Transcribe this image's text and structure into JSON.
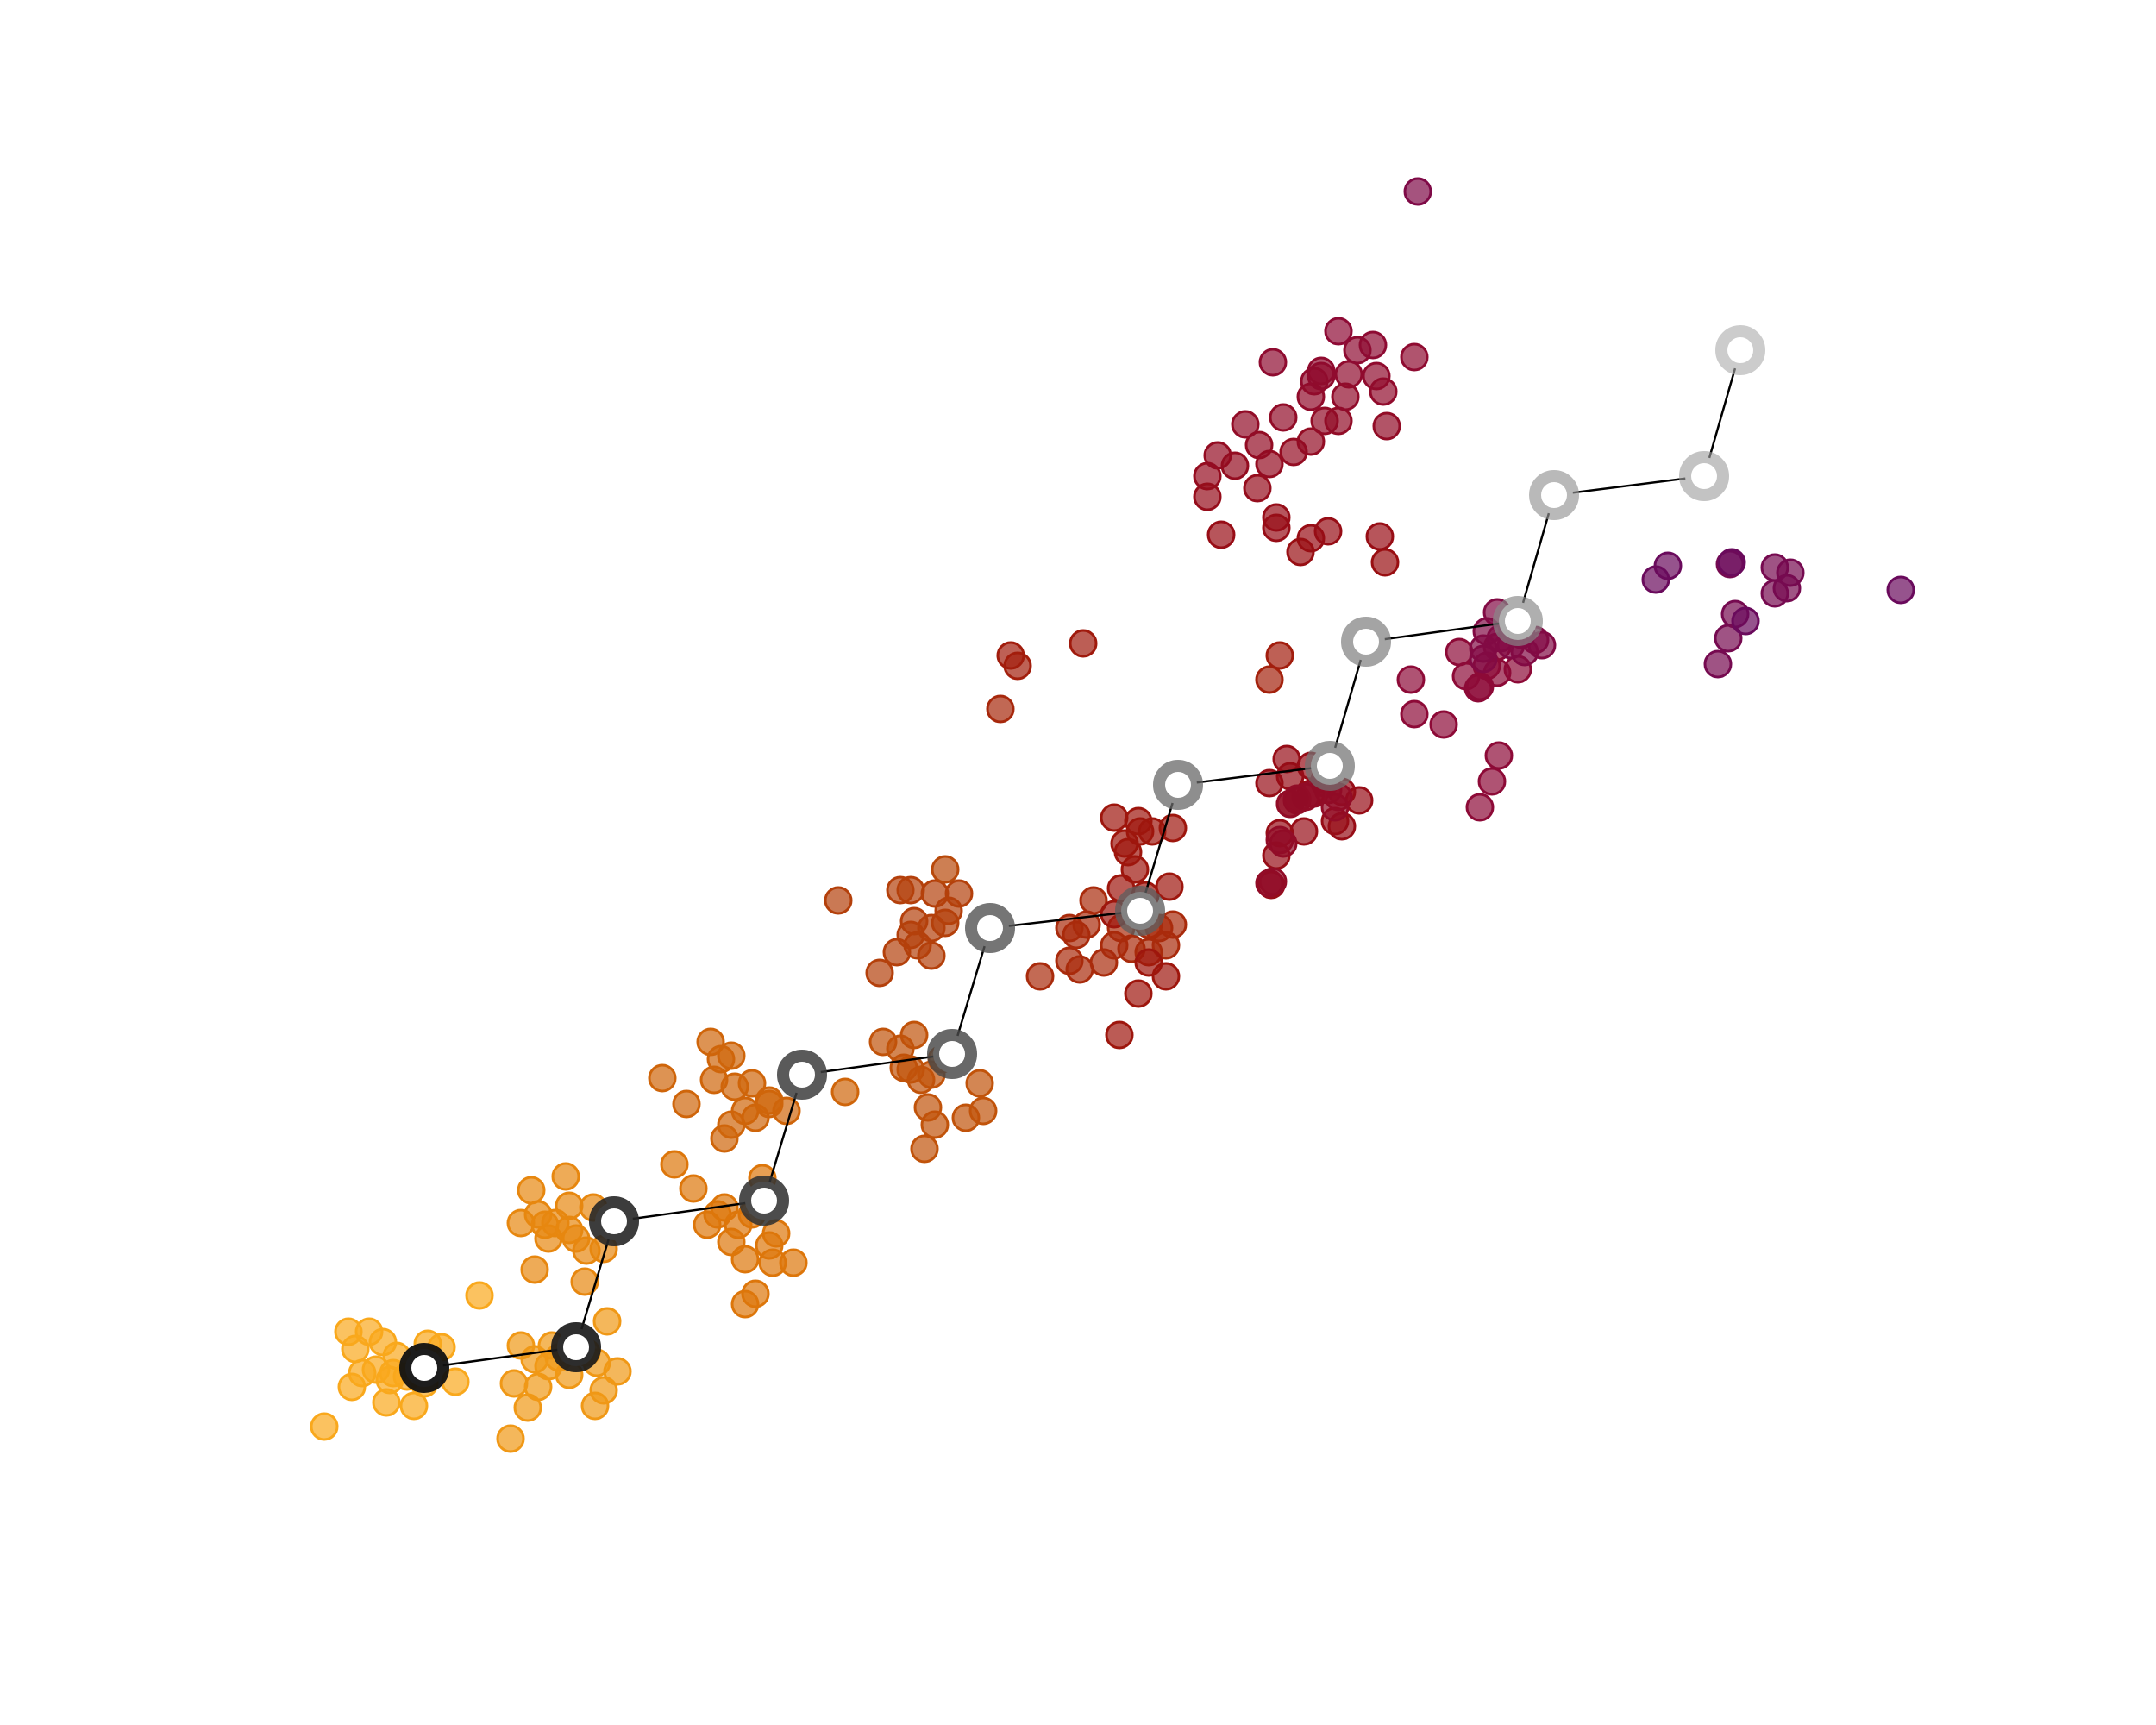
{
  "chart_data": {
    "type": "scatter",
    "title": "",
    "xlabel": "",
    "ylabel": "",
    "axes_visible": false,
    "grid": false,
    "legend": "none",
    "xlim": [
      0,
      1250
    ],
    "ylim": [
      1000,
      0
    ],
    "colors": {
      "gradient_start": "#F9A81C",
      "gradient_mid1": "#E07A0A",
      "gradient_mid2": "#B8480A",
      "gradient_mid3": "#9A0E0E",
      "gradient_mid4": "#8C0A3A",
      "gradient_end": "#6A0A5C",
      "path_line": "#000000",
      "path_node_dark": "#111111",
      "path_node_light": "#aaaaaa"
    },
    "path": [
      [
        246,
        207
      ],
      [
        334,
        219
      ],
      [
        356,
        292
      ],
      [
        443,
        304
      ],
      [
        465,
        377
      ],
      [
        552,
        389
      ],
      [
        574,
        462
      ],
      [
        661,
        472
      ],
      [
        683,
        545
      ],
      [
        771,
        556
      ],
      [
        792,
        628
      ],
      [
        880,
        640
      ],
      [
        901,
        713
      ],
      [
        988,
        724
      ],
      [
        1009,
        797
      ]
    ],
    "clusters": [
      {
        "center": [
          246,
          207
        ],
        "points": [
          [
            188,
            173
          ],
          [
            204,
            196
          ],
          [
            224,
            187
          ],
          [
            240,
            185
          ],
          [
            218,
            206
          ],
          [
            228,
            204
          ],
          [
            246,
            198
          ],
          [
            264,
            199
          ],
          [
            230,
            214
          ],
          [
            206,
            218
          ],
          [
            214,
            228
          ],
          [
            202,
            228
          ],
          [
            222,
            222
          ],
          [
            248,
            221
          ],
          [
            256,
            219
          ],
          [
            236,
            202
          ],
          [
            278,
            249
          ],
          [
            226,
            200
          ],
          [
            210,
            204
          ]
        ]
      },
      {
        "center": [
          334,
          219
        ],
        "points": [
          [
            296,
            166
          ],
          [
            306,
            184
          ],
          [
            312,
            196
          ],
          [
            298,
            198
          ],
          [
            310,
            212
          ],
          [
            330,
            203
          ],
          [
            345,
            185
          ],
          [
            350,
            194
          ],
          [
            358,
            205
          ],
          [
            340,
            216
          ],
          [
            320,
            220
          ],
          [
            302,
            220
          ],
          [
            352,
            234
          ],
          [
            318,
            208
          ],
          [
            346,
            210
          ],
          [
            324,
            213
          ]
        ]
      },
      {
        "center": [
          356,
          292
        ],
        "points": [
          [
            310,
            264
          ],
          [
            318,
            282
          ],
          [
            330,
            287
          ],
          [
            340,
            275
          ],
          [
            322,
            291
          ],
          [
            302,
            291
          ],
          [
            312,
            296
          ],
          [
            308,
            310
          ],
          [
            330,
            301
          ],
          [
            350,
            276
          ],
          [
            344,
            300
          ],
          [
            328,
            318
          ],
          [
            339,
            257
          ],
          [
            316,
            290
          ],
          [
            334,
            282
          ]
        ]
      },
      {
        "center": [
          443,
          304
        ],
        "points": [
          [
            432,
            244
          ],
          [
            438,
            250
          ],
          [
            448,
            268
          ],
          [
            460,
            268
          ],
          [
            446,
            278
          ],
          [
            432,
            270
          ],
          [
            424,
            280
          ],
          [
            450,
            285
          ],
          [
            410,
            290
          ],
          [
            420,
            300
          ],
          [
            402,
            311
          ],
          [
            391,
            325
          ],
          [
            436,
            296
          ],
          [
            442,
            317
          ],
          [
            416,
            296
          ],
          [
            428,
            290
          ]
        ]
      },
      {
        "center": [
          465,
          377
        ],
        "points": [
          [
            420,
            340
          ],
          [
            424,
            348
          ],
          [
            432,
            356
          ],
          [
            438,
            352
          ],
          [
            446,
            360
          ],
          [
            456,
            356
          ],
          [
            426,
            370
          ],
          [
            414,
            374
          ],
          [
            398,
            360
          ],
          [
            384,
            375
          ],
          [
            418,
            386
          ],
          [
            436,
            372
          ],
          [
            424,
            388
          ],
          [
            412,
            396
          ],
          [
            490,
            367
          ],
          [
            446,
            362
          ]
        ]
      },
      {
        "center": [
          552,
          389
        ],
        "points": [
          [
            536,
            334
          ],
          [
            542,
            348
          ],
          [
            538,
            358
          ],
          [
            560,
            352
          ],
          [
            570,
            356
          ],
          [
            568,
            372
          ],
          [
            534,
            374
          ],
          [
            524,
            381
          ],
          [
            512,
            396
          ],
          [
            530,
            400
          ],
          [
            546,
            386
          ],
          [
            522,
            392
          ],
          [
            528,
            380
          ],
          [
            540,
            377
          ]
        ]
      },
      {
        "center": [
          574,
          462
        ],
        "points": [
          [
            510,
            436
          ],
          [
            520,
            448
          ],
          [
            528,
            458
          ],
          [
            532,
            452
          ],
          [
            540,
            446
          ],
          [
            550,
            472
          ],
          [
            530,
            466
          ],
          [
            528,
            484
          ],
          [
            522,
            484
          ],
          [
            542,
            482
          ],
          [
            556,
            482
          ],
          [
            486,
            478
          ],
          [
            540,
            462
          ],
          [
            548,
            465
          ]
        ]
      },
      {
        "center": [
          661,
          472
        ],
        "points": [
          [
            603,
            434
          ],
          [
            620,
            443
          ],
          [
            626,
            438
          ],
          [
            640,
            442
          ],
          [
            646,
            452
          ],
          [
            656,
            450
          ],
          [
            666,
            448
          ],
          [
            676,
            452
          ],
          [
            624,
            458
          ],
          [
            666,
            464
          ],
          [
            650,
            462
          ],
          [
            630,
            464
          ],
          [
            634,
            478
          ],
          [
            620,
            462
          ],
          [
            680,
            464
          ],
          [
            672,
            462
          ]
        ]
      },
      {
        "center": [
          683,
          545
        ],
        "points": [
          [
            649,
            400
          ],
          [
            660,
            424
          ],
          [
            676,
            434
          ],
          [
            666,
            442
          ],
          [
            646,
            470
          ],
          [
            650,
            485
          ],
          [
            664,
            481
          ],
          [
            678,
            486
          ],
          [
            658,
            496
          ],
          [
            652,
            511
          ],
          [
            661,
            518
          ],
          [
            646,
            526
          ],
          [
            660,
            524
          ],
          [
            668,
            518
          ],
          [
            654,
            506
          ],
          [
            680,
            520
          ]
        ]
      },
      {
        "center": [
          771,
          556
        ],
        "points": [
          [
            737,
            487
          ],
          [
            742,
            517
          ],
          [
            740,
            504
          ],
          [
            748,
            534
          ],
          [
            756,
            518
          ],
          [
            774,
            524
          ],
          [
            778,
            521
          ],
          [
            788,
            536
          ],
          [
            778,
            541
          ],
          [
            760,
            540
          ],
          [
            760,
            556
          ],
          [
            770,
            556
          ],
          [
            748,
            550
          ],
          [
            736,
            546
          ],
          [
            768,
            548
          ],
          [
            746,
            560
          ]
        ]
      },
      {
        "center": [
          792,
          628
        ],
        "points": [
          [
            736,
            488
          ],
          [
            738,
            489
          ],
          [
            744,
            511
          ],
          [
            752,
            536
          ],
          [
            748,
            534
          ],
          [
            770,
            542
          ],
          [
            768,
            546
          ],
          [
            757,
            538
          ],
          [
            762,
            540
          ],
          [
            752,
            537
          ],
          [
            774,
            532
          ],
          [
            776,
            538
          ],
          [
            742,
            513
          ]
        ]
      },
      {
        "center": [
          880,
          640
        ],
        "points": [
          [
            858,
            532
          ],
          [
            865,
            547
          ],
          [
            869,
            562
          ],
          [
            837,
            580
          ],
          [
            818,
            606
          ],
          [
            820,
            586
          ],
          [
            857,
            601
          ],
          [
            850,
            608
          ],
          [
            846,
            622
          ],
          [
            880,
            612
          ],
          [
            868,
            625
          ],
          [
            858,
            602
          ],
          [
            868,
            610
          ],
          [
            862,
            614
          ]
        ]
      },
      {
        "center": [
          901,
          713
        ],
        "points": [
          [
            860,
            618
          ],
          [
            862,
            634
          ],
          [
            868,
            645
          ],
          [
            878,
            636
          ],
          [
            894,
            626
          ],
          [
            876,
            626
          ],
          [
            884,
            622
          ],
          [
            890,
            629
          ],
          [
            860,
            624
          ],
          [
            882,
            632
          ],
          [
            870,
            630
          ]
        ]
      },
      {
        "center": [
          988,
          724
        ],
        "points": [
          [
            996,
            615
          ],
          [
            1002,
            630
          ],
          [
            1006,
            644
          ],
          [
            1029,
            656
          ],
          [
            1036,
            659
          ],
          [
            1029,
            671
          ],
          [
            1038,
            668
          ],
          [
            1003,
            673
          ]
        ]
      },
      {
        "center": [
          1009,
          797
        ],
        "points": [
          [
            1102,
            658
          ],
          [
            1004,
            674
          ],
          [
            960,
            664
          ],
          [
            967,
            672
          ],
          [
            1012,
            640
          ]
        ]
      }
    ],
    "extras": [
      [
        628,
        627
      ],
      [
        708,
        690
      ],
      [
        822,
        889
      ],
      [
        800,
        689
      ],
      [
        803,
        674
      ],
      [
        782,
        783
      ],
      [
        766,
        785
      ],
      [
        804,
        753
      ],
      [
        796,
        800
      ],
      [
        820,
        793
      ],
      [
        798,
        782
      ],
      [
        802,
        773
      ],
      [
        787,
        797
      ],
      [
        776,
        808
      ],
      [
        762,
        779
      ],
      [
        700,
        724
      ],
      [
        729,
        717
      ],
      [
        700,
        712
      ],
      [
        706,
        736
      ],
      [
        716,
        730
      ],
      [
        736,
        731
      ],
      [
        730,
        742
      ],
      [
        722,
        754
      ],
      [
        744,
        758
      ],
      [
        750,
        738
      ],
      [
        760,
        744
      ],
      [
        768,
        756
      ],
      [
        776,
        756
      ],
      [
        760,
        770
      ],
      [
        780,
        770
      ],
      [
        738,
        790
      ],
      [
        766,
        782
      ],
      [
        740,
        700
      ],
      [
        760,
        688
      ],
      [
        754,
        680
      ],
      [
        740,
        694
      ],
      [
        770,
        692
      ],
      [
        548,
        496
      ],
      [
        580,
        589
      ],
      [
        590,
        614
      ],
      [
        586,
        620
      ],
      [
        736,
        606
      ],
      [
        742,
        620
      ]
    ]
  }
}
